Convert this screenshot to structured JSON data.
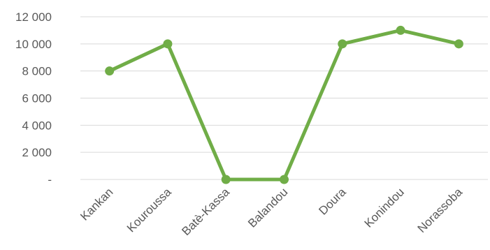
{
  "chart_data": {
    "type": "line",
    "title": "",
    "xlabel": "",
    "ylabel": "",
    "categories": [
      "Kankan",
      "Kouroussa",
      "Batè-Kassa",
      "Balandou",
      "Doura",
      "Konindou",
      "Norassoba"
    ],
    "series": [
      {
        "values": [
          8000,
          10000,
          0,
          0,
          10000,
          11000,
          10000
        ]
      }
    ],
    "ylim": [
      0,
      12000
    ],
    "yticks": [
      0,
      2000,
      4000,
      6000,
      8000,
      10000,
      12000
    ],
    "ytick_labels": [
      "-",
      "2 000",
      "4 000",
      "6 000",
      "8 000",
      "10 000",
      "12 000"
    ],
    "grid": true,
    "legend": "none",
    "colors": {
      "line": "#70AD47",
      "grid": "#D9D9D9",
      "text": "#595959"
    }
  }
}
